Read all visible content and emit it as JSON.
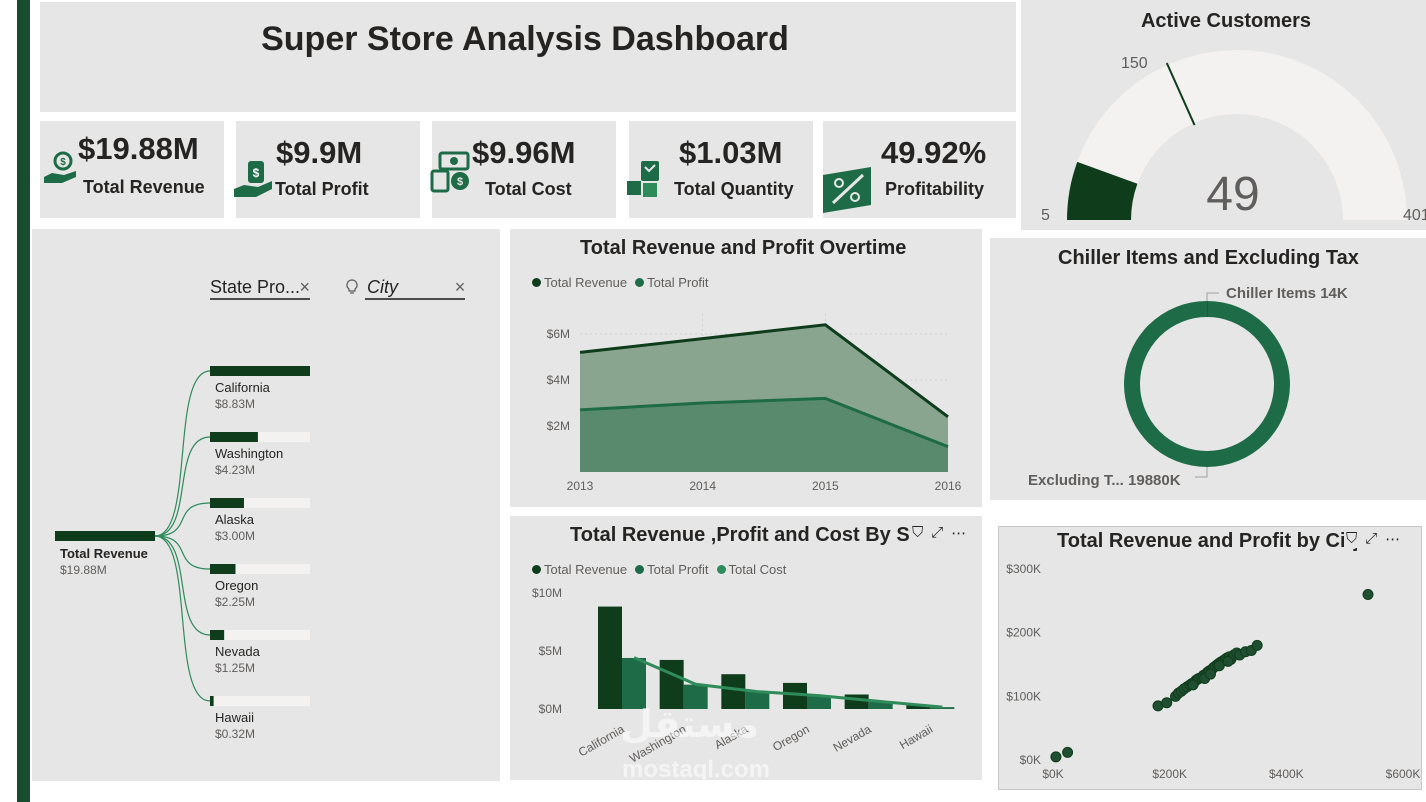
{
  "title": "Super Store Analysis Dashboard",
  "colors": {
    "dark_green": "#0f3d1c",
    "mid_green": "#1e6b47",
    "light_green": "#2e8b5a",
    "panel": "#e6e6e6"
  },
  "kpis": [
    {
      "value": "$19.88M",
      "label": "Total Revenue",
      "icon": "revenue-hand-icon"
    },
    {
      "value": "$9.9M",
      "label": "Total Profit",
      "icon": "profit-hand-icon"
    },
    {
      "value": "$9.96M",
      "label": "Total Cost",
      "icon": "cost-cash-icon"
    },
    {
      "value": "$1.03M",
      "label": "Total Quantity",
      "icon": "quantity-boxes-icon"
    },
    {
      "value": "49.92%",
      "label": "Profitability",
      "icon": "percent-icon"
    }
  ],
  "gauge": {
    "title": "Active Customers",
    "value": "49",
    "min": "5",
    "max": "401",
    "target": "150",
    "value_num": 49,
    "min_num": 5,
    "max_num": 401,
    "target_num": 150
  },
  "slicers": {
    "state": "State Pro...",
    "city": "City",
    "clear": "×"
  },
  "tree": {
    "root_label": "Total Revenue",
    "root_value": "$19.88M",
    "items": [
      {
        "label": "California",
        "value": "$8.83M",
        "num": 8.83
      },
      {
        "label": "Washington",
        "value": "$4.23M",
        "num": 4.23
      },
      {
        "label": "Alaska",
        "value": "$3.00M",
        "num": 3.0
      },
      {
        "label": "Oregon",
        "value": "$2.25M",
        "num": 2.25
      },
      {
        "label": "Nevada",
        "value": "$1.25M",
        "num": 1.25
      },
      {
        "label": "Hawaii",
        "value": "$0.32M",
        "num": 0.32
      }
    ]
  },
  "area_chart": {
    "title": "Total Revenue and Profit Overtime",
    "legend": [
      "Total Revenue",
      "Total Profit"
    ],
    "y_ticks": [
      "$2M",
      "$4M",
      "$6M"
    ],
    "x_ticks": [
      "2013",
      "2014",
      "2015",
      "2016"
    ]
  },
  "donut": {
    "title": "Chiller Items and Excluding Tax",
    "label_a": "Chiller Items 14K",
    "label_b": "Excluding T... 19880K"
  },
  "bar_chart": {
    "title": "Total Revenue ,Profit and Cost By State",
    "legend": [
      "Total Revenue",
      "Total Profit",
      "Total Cost"
    ],
    "y_ticks": [
      "$0M",
      "$5M",
      "$10M"
    ]
  },
  "scatter": {
    "title": "Total Revenue and Profit by City",
    "y_ticks": [
      "$0K",
      "$100K",
      "$200K",
      "$300K"
    ],
    "x_ticks": [
      "$0K",
      "$200K",
      "$400K",
      "$600K"
    ]
  },
  "visual_header": {
    "filter": "⛉",
    "focus": "⤢",
    "more": "⋯"
  },
  "watermark": {
    "line1": "مستقل",
    "line2": "mostaql.com"
  },
  "chart_data": [
    {
      "type": "area",
      "title": "Total Revenue and Profit Overtime",
      "x": [
        2013,
        2014,
        2015,
        2016
      ],
      "ylim": [
        0,
        7
      ],
      "series": [
        {
          "name": "Total Revenue",
          "values": [
            5.2,
            5.8,
            6.4,
            2.4
          ]
        },
        {
          "name": "Total Profit",
          "values": [
            2.7,
            3.0,
            3.2,
            1.1
          ]
        }
      ]
    },
    {
      "type": "bar",
      "title": "Total Revenue ,Profit and Cost By State",
      "categories": [
        "California",
        "Washington",
        "Alaska",
        "Oregon",
        "Nevada",
        "Hawaii"
      ],
      "ylim": [
        0,
        10
      ],
      "series": [
        {
          "name": "Total Revenue",
          "values": [
            8.83,
            4.23,
            3.0,
            2.25,
            1.25,
            0.32
          ]
        },
        {
          "name": "Total Profit",
          "values": [
            4.4,
            2.1,
            1.5,
            1.1,
            0.6,
            0.16
          ]
        },
        {
          "name": "Total Cost",
          "values": [
            4.43,
            2.13,
            1.5,
            1.15,
            0.65,
            0.16
          ]
        }
      ]
    },
    {
      "type": "scatter",
      "title": "Total Revenue and Profit by City",
      "xlim": [
        0,
        600
      ],
      "ylim": [
        0,
        320
      ],
      "points": [
        [
          5,
          5
        ],
        [
          25,
          12
        ],
        [
          180,
          85
        ],
        [
          195,
          90
        ],
        [
          210,
          100
        ],
        [
          215,
          105
        ],
        [
          220,
          108
        ],
        [
          225,
          112
        ],
        [
          230,
          115
        ],
        [
          235,
          118
        ],
        [
          238,
          120
        ],
        [
          242,
          122
        ],
        [
          245,
          125
        ],
        [
          248,
          127
        ],
        [
          250,
          128
        ],
        [
          255,
          130
        ],
        [
          258,
          133
        ],
        [
          262,
          135
        ],
        [
          265,
          138
        ],
        [
          268,
          140
        ],
        [
          272,
          142
        ],
        [
          275,
          145
        ],
        [
          278,
          147
        ],
        [
          282,
          150
        ],
        [
          285,
          152
        ],
        [
          288,
          154
        ],
        [
          292,
          156
        ],
        [
          295,
          158
        ],
        [
          298,
          160
        ],
        [
          302,
          162
        ],
        [
          305,
          158
        ],
        [
          310,
          165
        ],
        [
          315,
          168
        ],
        [
          320,
          165
        ],
        [
          330,
          170
        ],
        [
          340,
          172
        ],
        [
          350,
          180
        ],
        [
          260,
          128
        ],
        [
          240,
          118
        ],
        [
          270,
          135
        ],
        [
          285,
          148
        ],
        [
          300,
          155
        ],
        [
          540,
          260
        ]
      ]
    },
    {
      "type": "pie",
      "title": "Chiller Items and Excluding Tax",
      "categories": [
        "Chiller Items",
        "Excluding Tax"
      ],
      "values": [
        14,
        19880
      ]
    }
  ]
}
